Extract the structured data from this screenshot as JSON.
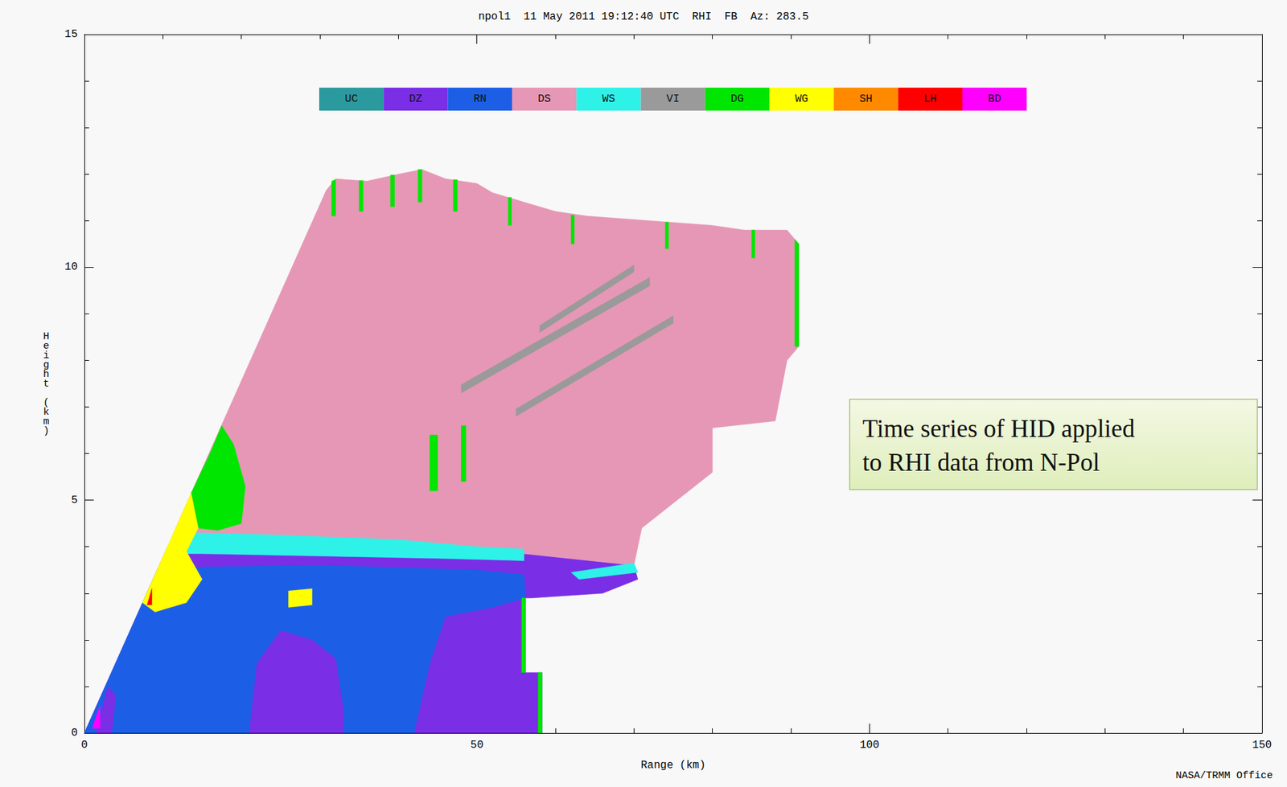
{
  "chart_data": {
    "type": "hid_rhi",
    "title": "npol1  11 May 2011 19:12:40 UTC  RHI  FB  Az: 283.5",
    "x_label": "Range (km)",
    "y_label": "Height (km)",
    "xlim": [
      0,
      150
    ],
    "ylim": [
      0,
      15
    ],
    "xticks": [
      0,
      50,
      100,
      150
    ],
    "yticks": [
      0,
      5,
      10,
      15
    ],
    "classes": [
      {
        "name": "UC",
        "color": "#2a9a9e"
      },
      {
        "name": "DZ",
        "color": "#7a2ee6"
      },
      {
        "name": "RN",
        "color": "#1c5fe6"
      },
      {
        "name": "DS",
        "color": "#e697b5"
      },
      {
        "name": "WS",
        "color": "#2ef2e8"
      },
      {
        "name": "VI",
        "color": "#9a9a9a"
      },
      {
        "name": "DG",
        "color": "#00e600"
      },
      {
        "name": "WG",
        "color": "#ffff00"
      },
      {
        "name": "SH",
        "color": "#ff8a00"
      },
      {
        "name": "LH",
        "color": "#ff0000"
      },
      {
        "name": "BD",
        "color": "#ff00ff"
      }
    ],
    "regions": [
      {
        "class": "DZ",
        "polygon": [
          [
            0,
            0
          ],
          [
            10.6,
            4.0
          ],
          [
            56,
            3.85
          ],
          [
            70,
            3.6
          ],
          [
            70.5,
            3.3
          ],
          [
            66,
            3.0
          ],
          [
            57,
            2.9
          ],
          [
            56.2,
            2.9
          ],
          [
            56.2,
            1.3
          ],
          [
            58.3,
            1.3
          ],
          [
            58.3,
            0
          ]
        ]
      },
      {
        "class": "RN",
        "polygon": [
          [
            0,
            0
          ],
          [
            9.4,
            3.55
          ],
          [
            30,
            3.6
          ],
          [
            50,
            3.5
          ],
          [
            56,
            3.4
          ],
          [
            56.2,
            2.9
          ],
          [
            52,
            2.7
          ],
          [
            46,
            2.5
          ],
          [
            44,
            1.5
          ],
          [
            42,
            0
          ]
        ]
      },
      {
        "class": "DZ",
        "polygon": [
          [
            21,
            0
          ],
          [
            22,
            1.5
          ],
          [
            25,
            2.2
          ],
          [
            29,
            2.0
          ],
          [
            32,
            1.6
          ],
          [
            33,
            0.5
          ],
          [
            33,
            0
          ]
        ]
      },
      {
        "class": "DZ",
        "polygon": [
          [
            1.5,
            0
          ],
          [
            3,
            1.0
          ],
          [
            4,
            0.8
          ],
          [
            3.5,
            0
          ]
        ]
      },
      {
        "class": "DS",
        "polygon": [
          [
            10.6,
            4.0
          ],
          [
            12.5,
            4.73
          ],
          [
            30.8,
            11.65
          ],
          [
            32,
            11.9
          ],
          [
            36,
            11.85
          ],
          [
            40,
            12.0
          ],
          [
            43,
            12.1
          ],
          [
            46,
            11.9
          ],
          [
            50,
            11.8
          ],
          [
            52,
            11.6
          ],
          [
            56,
            11.4
          ],
          [
            60,
            11.2
          ],
          [
            64,
            11.1
          ],
          [
            68,
            11.05
          ],
          [
            72,
            11.0
          ],
          [
            76,
            10.95
          ],
          [
            80,
            10.9
          ],
          [
            84,
            10.8
          ],
          [
            87.5,
            10.8
          ],
          [
            89.5,
            10.8
          ],
          [
            91,
            10.5
          ],
          [
            91,
            8.3
          ],
          [
            89.5,
            8.0
          ],
          [
            88,
            6.7
          ],
          [
            80,
            6.55
          ],
          [
            80,
            5.6
          ],
          [
            71,
            4.4
          ],
          [
            70,
            3.6
          ],
          [
            56,
            3.85
          ]
        ]
      },
      {
        "class": "VI",
        "polygon": [
          [
            48,
            7.3
          ],
          [
            72,
            9.6
          ],
          [
            72,
            9.78
          ],
          [
            48,
            7.48
          ]
        ]
      },
      {
        "class": "VI",
        "polygon": [
          [
            55,
            6.8
          ],
          [
            75,
            8.8
          ],
          [
            75,
            8.96
          ],
          [
            55,
            6.96
          ]
        ]
      },
      {
        "class": "VI",
        "polygon": [
          [
            58,
            8.6
          ],
          [
            70,
            9.9
          ],
          [
            70,
            10.05
          ],
          [
            58,
            8.75
          ]
        ]
      },
      {
        "class": "WS",
        "polygon": [
          [
            10.2,
            3.85
          ],
          [
            10.6,
            4.0
          ],
          [
            14,
            4.3
          ],
          [
            25,
            4.25
          ],
          [
            40,
            4.15
          ],
          [
            50,
            4.0
          ],
          [
            56,
            3.95
          ],
          [
            56,
            3.7
          ],
          [
            45,
            3.75
          ],
          [
            30,
            3.8
          ],
          [
            15,
            3.85
          ]
        ]
      },
      {
        "class": "WS",
        "polygon": [
          [
            62,
            3.45
          ],
          [
            70,
            3.65
          ],
          [
            70.5,
            3.45
          ],
          [
            63,
            3.3
          ]
        ]
      },
      {
        "class": "DG",
        "polygon": [
          [
            13.6,
            5.15
          ],
          [
            16,
            6.0
          ],
          [
            17.5,
            6.6
          ],
          [
            19,
            6.2
          ],
          [
            20.5,
            5.3
          ],
          [
            20,
            4.5
          ],
          [
            17,
            4.35
          ],
          [
            14.5,
            4.4
          ]
        ]
      },
      {
        "class": "DG",
        "polygon": [
          [
            44,
            5.2
          ],
          [
            45,
            5.2
          ],
          [
            45,
            6.4
          ],
          [
            44,
            6.4
          ]
        ]
      },
      {
        "class": "DG",
        "polygon": [
          [
            48,
            5.4
          ],
          [
            48.6,
            5.4
          ],
          [
            48.6,
            6.6
          ],
          [
            48,
            6.6
          ]
        ]
      },
      {
        "class": "DG",
        "polygon": [
          [
            90.5,
            8.3
          ],
          [
            91,
            8.3
          ],
          [
            91,
            10.5
          ],
          [
            90.5,
            10.6
          ]
        ]
      },
      {
        "class": "DG",
        "polygon": [
          [
            55.7,
            1.3
          ],
          [
            56.2,
            1.3
          ],
          [
            56.2,
            2.9
          ],
          [
            55.7,
            2.9
          ]
        ]
      },
      {
        "class": "DG",
        "polygon": [
          [
            57.8,
            0
          ],
          [
            58.3,
            0
          ],
          [
            58.3,
            1.3
          ],
          [
            57.8,
            1.3
          ]
        ]
      },
      {
        "class": "DG",
        "polygon": [
          [
            31.5,
            11.1
          ],
          [
            32,
            11.1
          ],
          [
            32,
            11.88
          ],
          [
            31.5,
            11.85
          ]
        ]
      },
      {
        "class": "DG",
        "polygon": [
          [
            35,
            11.2
          ],
          [
            35.5,
            11.2
          ],
          [
            35.5,
            11.86
          ],
          [
            35,
            11.86
          ]
        ]
      },
      {
        "class": "DG",
        "polygon": [
          [
            39,
            11.3
          ],
          [
            39.5,
            11.3
          ],
          [
            39.5,
            11.98
          ],
          [
            39,
            11.98
          ]
        ]
      },
      {
        "class": "DG",
        "polygon": [
          [
            42.5,
            11.4
          ],
          [
            43,
            11.4
          ],
          [
            43,
            12.1
          ],
          [
            42.5,
            12.1
          ]
        ]
      },
      {
        "class": "DG",
        "polygon": [
          [
            47,
            11.2
          ],
          [
            47.5,
            11.2
          ],
          [
            47.5,
            11.88
          ],
          [
            47,
            11.88
          ]
        ]
      },
      {
        "class": "DG",
        "polygon": [
          [
            54,
            10.9
          ],
          [
            54.4,
            10.9
          ],
          [
            54.4,
            11.5
          ],
          [
            54,
            11.5
          ]
        ]
      },
      {
        "class": "DG",
        "polygon": [
          [
            62,
            10.5
          ],
          [
            62.4,
            10.5
          ],
          [
            62.4,
            11.12
          ],
          [
            62,
            11.12
          ]
        ]
      },
      {
        "class": "DG",
        "polygon": [
          [
            74,
            10.4
          ],
          [
            74.4,
            10.4
          ],
          [
            74.4,
            10.97
          ],
          [
            74,
            10.97
          ]
        ]
      },
      {
        "class": "DG",
        "polygon": [
          [
            85,
            10.2
          ],
          [
            85.4,
            10.2
          ],
          [
            85.4,
            10.8
          ],
          [
            85,
            10.8
          ]
        ]
      },
      {
        "class": "WG",
        "polygon": [
          [
            7.4,
            2.8
          ],
          [
            13.6,
            5.15
          ],
          [
            14.5,
            4.4
          ],
          [
            13,
            3.9
          ],
          [
            15,
            3.3
          ],
          [
            13,
            2.8
          ],
          [
            9,
            2.6
          ]
        ]
      },
      {
        "class": "WG",
        "polygon": [
          [
            26,
            2.7
          ],
          [
            29,
            2.75
          ],
          [
            29,
            3.1
          ],
          [
            26,
            3.05
          ]
        ]
      },
      {
        "class": "LH",
        "polygon": [
          [
            8.0,
            2.75
          ],
          [
            8.6,
            3.1
          ],
          [
            8.6,
            2.75
          ]
        ]
      },
      {
        "class": "BD",
        "polygon": [
          [
            1,
            0.1
          ],
          [
            2,
            0.6
          ],
          [
            2,
            0.1
          ]
        ]
      }
    ],
    "annotation_lines": [
      "Time series of HID applied",
      "to RHI data from N-Pol"
    ],
    "credit": "NASA/TRMM Office"
  }
}
